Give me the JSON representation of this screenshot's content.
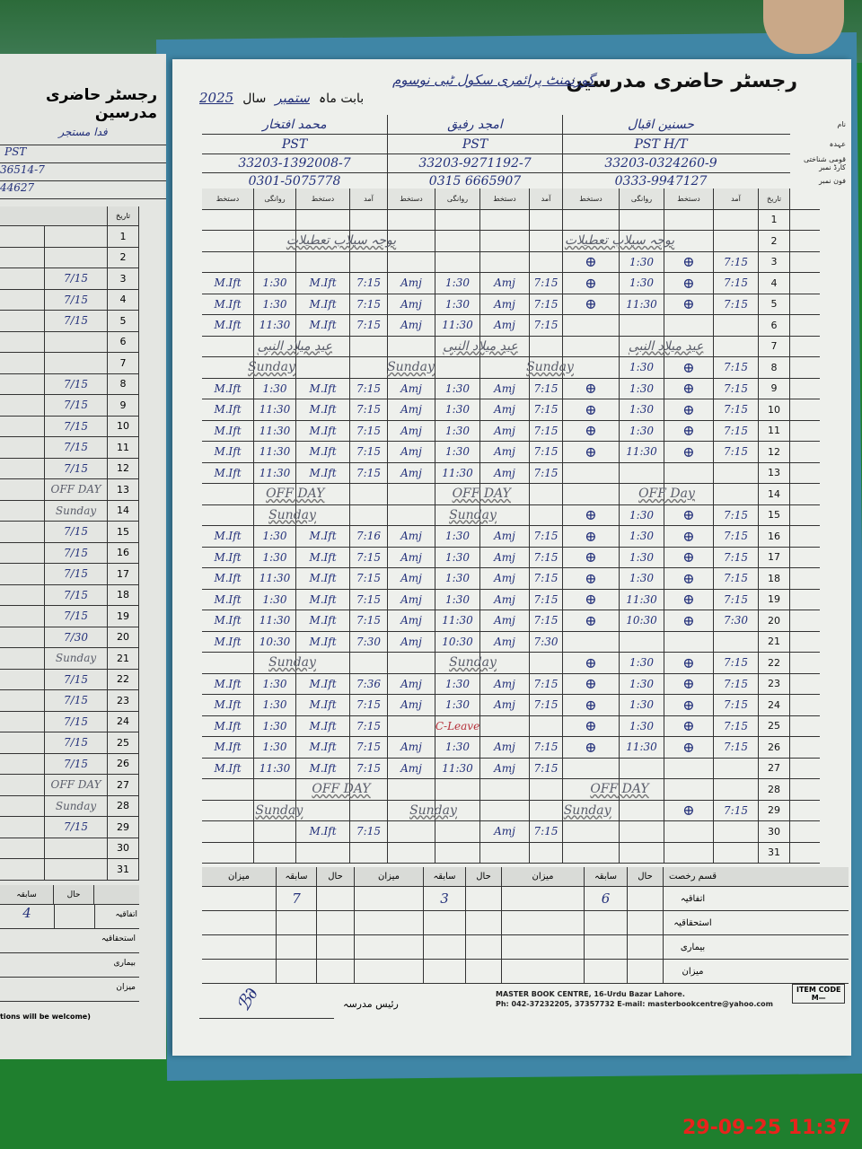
{
  "register": {
    "title": "رجسٹر حاضری مدرسین",
    "school": "گورنمنٹ پرائمری سکول ٹبی نوسوم",
    "month_label": "بابت ماہ",
    "month": "ستمبر",
    "year_label": "سال",
    "year": "2025"
  },
  "info_labels": {
    "name": "نام",
    "designation": "عہدہ",
    "cnic": "قومی شناختی کارڈ نمبر",
    "phone": "فون نمبر"
  },
  "teachers": [
    {
      "name": "محمد افتخار",
      "designation": "PST",
      "cnic": "33203-1392008-7",
      "phone": "0301-5075778"
    },
    {
      "name": "امجد رفیق",
      "designation": "PST",
      "cnic": "33203-9271192-7",
      "phone": "0315 6665907"
    },
    {
      "name": "حسنین اقبال",
      "designation": "PST   H/T",
      "cnic": "33203-0324260-9",
      "phone": "0333-9947127"
    }
  ],
  "columns": [
    "دستخط",
    "روانگی",
    "دستخط",
    "آمد"
  ],
  "date_header": "تاریخ",
  "rows": [
    {
      "date": "1",
      "cells": [
        "",
        "",
        "",
        "",
        "",
        "",
        "",
        "",
        "",
        "",
        "",
        ""
      ]
    },
    {
      "date": "2",
      "cells": [
        "",
        "",
        "",
        "",
        "",
        "",
        "",
        "",
        "",
        "",
        "",
        ""
      ],
      "note": [
        "بوجہ سیلاب تعطیلات",
        "بوجہ سیلاب تعطیلات"
      ]
    },
    {
      "date": "3",
      "cells": [
        "",
        "",
        "",
        "",
        "",
        "",
        "",
        "",
        "⊕",
        "1:30",
        "⊕",
        "7:15"
      ]
    },
    {
      "date": "4",
      "cells": [
        "M.Ift",
        "1:30",
        "M.Ift",
        "7:15",
        "Amj",
        "1:30",
        "Amj",
        "7:15",
        "⊕",
        "1:30",
        "⊕",
        "7:15"
      ]
    },
    {
      "date": "5",
      "cells": [
        "M.Ift",
        "1:30",
        "M.Ift",
        "7:15",
        "Amj",
        "1:30",
        "Amj",
        "7:15",
        "⊕",
        "11:30",
        "⊕",
        "7:15"
      ]
    },
    {
      "date": "6",
      "cells": [
        "M.Ift",
        "11:30",
        "M.Ift",
        "7:15",
        "Amj",
        "11:30",
        "Amj",
        "7:15",
        "",
        "",
        "",
        ""
      ]
    },
    {
      "date": "7",
      "cells": [
        "",
        "",
        "",
        "",
        "",
        "",
        "",
        "",
        "",
        "",
        "",
        ""
      ],
      "note": [
        "عید میلاد النبی",
        "عید میلاد النبی",
        "عید میلاد النبی"
      ]
    },
    {
      "date": "8",
      "cells": [
        "",
        "",
        "",
        "",
        "",
        "",
        "",
        "",
        "",
        "1:30",
        "⊕",
        "7:15"
      ],
      "note": [
        "Sunday",
        "Sunday",
        "Sunday"
      ]
    },
    {
      "date": "9",
      "cells": [
        "M.Ift",
        "1:30",
        "M.Ift",
        "7:15",
        "Amj",
        "1:30",
        "Amj",
        "7:15",
        "⊕",
        "1:30",
        "⊕",
        "7:15"
      ]
    },
    {
      "date": "10",
      "cells": [
        "M.Ift",
        "11:30",
        "M.Ift",
        "7:15",
        "Amj",
        "1:30",
        "Amj",
        "7:15",
        "⊕",
        "1:30",
        "⊕",
        "7:15"
      ]
    },
    {
      "date": "11",
      "cells": [
        "M.Ift",
        "11:30",
        "M.Ift",
        "7:15",
        "Amj",
        "1:30",
        "Amj",
        "7:15",
        "⊕",
        "1:30",
        "⊕",
        "7:15"
      ]
    },
    {
      "date": "12",
      "cells": [
        "M.Ift",
        "11:30",
        "M.Ift",
        "7:15",
        "Amj",
        "1:30",
        "Amj",
        "7:15",
        "⊕",
        "11:30",
        "⊕",
        "7:15"
      ]
    },
    {
      "date": "13",
      "cells": [
        "M.Ift",
        "11:30",
        "M.Ift",
        "7:15",
        "Amj",
        "11:30",
        "Amj",
        "7:15",
        "",
        "",
        "",
        ""
      ]
    },
    {
      "date": "14",
      "cells": [
        "",
        "",
        "",
        "",
        "",
        "",
        "",
        "",
        "",
        "",
        "",
        ""
      ],
      "note": [
        "OFF DAY",
        "OFF DAY",
        "OFF Day"
      ]
    },
    {
      "date": "15",
      "cells": [
        "",
        "",
        "",
        "",
        "",
        "",
        "",
        "",
        "⊕",
        "1:30",
        "⊕",
        "7:15"
      ],
      "note": [
        "Sunday",
        "Sunday"
      ]
    },
    {
      "date": "16",
      "cells": [
        "M.Ift",
        "1:30",
        "M.Ift",
        "7:16",
        "Amj",
        "1:30",
        "Amj",
        "7:15",
        "⊕",
        "1:30",
        "⊕",
        "7:15"
      ]
    },
    {
      "date": "17",
      "cells": [
        "M.Ift",
        "1:30",
        "M.Ift",
        "7:15",
        "Amj",
        "1:30",
        "Amj",
        "7:15",
        "⊕",
        "1:30",
        "⊕",
        "7:15"
      ]
    },
    {
      "date": "18",
      "cells": [
        "M.Ift",
        "11:30",
        "M.Ift",
        "7:15",
        "Amj",
        "1:30",
        "Amj",
        "7:15",
        "⊕",
        "1:30",
        "⊕",
        "7:15"
      ]
    },
    {
      "date": "19",
      "cells": [
        "M.Ift",
        "1:30",
        "M.Ift",
        "7:15",
        "Amj",
        "1:30",
        "Amj",
        "7:15",
        "⊕",
        "11:30",
        "⊕",
        "7:15"
      ]
    },
    {
      "date": "20",
      "cells": [
        "M.Ift",
        "11:30",
        "M.Ift",
        "7:15",
        "Amj",
        "11:30",
        "Amj",
        "7:15",
        "⊕",
        "10:30",
        "⊕",
        "7:30"
      ]
    },
    {
      "date": "21",
      "cells": [
        "M.Ift",
        "10:30",
        "M.Ift",
        "7:30",
        "Amj",
        "10:30",
        "Amj",
        "7:30",
        "",
        "",
        "",
        ""
      ]
    },
    {
      "date": "22",
      "cells": [
        "",
        "",
        "",
        "",
        "",
        "",
        "",
        "",
        "⊕",
        "1:30",
        "⊕",
        "7:15"
      ],
      "note": [
        "Sunday",
        "Sunday"
      ]
    },
    {
      "date": "23",
      "cells": [
        "M.Ift",
        "1:30",
        "M.Ift",
        "7:36",
        "Amj",
        "1:30",
        "Amj",
        "7:15",
        "⊕",
        "1:30",
        "⊕",
        "7:15"
      ]
    },
    {
      "date": "24",
      "cells": [
        "M.Ift",
        "1:30",
        "M.Ift",
        "7:15",
        "Amj",
        "1:30",
        "Amj",
        "7:15",
        "⊕",
        "1:30",
        "⊕",
        "7:15"
      ]
    },
    {
      "date": "25",
      "cells": [
        "M.Ift",
        "1:30",
        "M.Ift",
        "7:15",
        "",
        "C-Leave",
        "",
        "",
        "⊕",
        "1:30",
        "⊕",
        "7:15"
      ]
    },
    {
      "date": "26",
      "cells": [
        "M.Ift",
        "1:30",
        "M.Ift",
        "7:15",
        "Amj",
        "1:30",
        "Amj",
        "7:15",
        "⊕",
        "11:30",
        "⊕",
        "7:15"
      ]
    },
    {
      "date": "27",
      "cells": [
        "M.Ift",
        "11:30",
        "M.Ift",
        "7:15",
        "Amj",
        "11:30",
        "Amj",
        "7:15",
        "",
        "",
        "",
        ""
      ]
    },
    {
      "date": "28",
      "cells": [
        "",
        "",
        "",
        "",
        "",
        "",
        "",
        "",
        "",
        "",
        "",
        ""
      ],
      "note": [
        "OFF DAY",
        "OFF DAY"
      ]
    },
    {
      "date": "29",
      "cells": [
        "",
        "",
        "",
        "",
        "",
        "",
        "",
        "",
        "",
        "",
        "⊕",
        "7:15"
      ],
      "note": [
        "Sunday",
        "Sunday",
        "Sunday"
      ]
    },
    {
      "date": "30",
      "cells": [
        "",
        "",
        "M.Ift",
        "7:15",
        "",
        "",
        "Amj",
        "7:15",
        "",
        "",
        "",
        ""
      ]
    },
    {
      "date": "31",
      "cells": [
        "",
        "",
        "",
        "",
        "",
        "",
        "",
        "",
        "",
        "",
        "",
        ""
      ]
    }
  ],
  "summary": {
    "headers": [
      "میزان",
      "سابقہ",
      "حال"
    ],
    "leave_type": "قسم رخصت",
    "leave_rows": [
      "اتفاقیہ",
      "استحقاقیہ",
      "بیماری",
      "میزان"
    ],
    "previous_values": [
      "7",
      "3",
      "6"
    ]
  },
  "footer": {
    "headmaster_label": "رئیس مدرسہ",
    "publisher": "MASTER BOOK CENTRE, 16-Urdu Bazar Lahore.",
    "contact": "Ph: 042-37232205, 37357732 E-mail: masterbookcentre@yahoo.com",
    "item_code_label": "ITEM CODE",
    "item_code": "M—"
  },
  "left_page": {
    "title": "رجسٹر حاضری مدرسین",
    "name": "فدا مستجر",
    "designation": "PST",
    "cnic": "36514-7",
    "phone": "44627",
    "date_header": "تاریخ",
    "rows": [
      "",
      "",
      "7/15",
      "7/15",
      "7/15",
      "",
      "",
      "7/15",
      "7/15",
      "7/15",
      "7/15",
      "7/15",
      "OFF DAY",
      "Sunday",
      "7/15",
      "7/15",
      "7/15",
      "7/15",
      "7/15",
      "7/30",
      "Sunday",
      "7/15",
      "7/15",
      "7/15",
      "7/15",
      "7/15",
      "OFF DAY",
      "Sunday",
      "7/15",
      "",
      ""
    ],
    "summary_headers": [
      "سابقہ",
      "حال"
    ],
    "summary_value": "4",
    "leave_rows": [
      "اتفاقیہ",
      "استحقاقیہ",
      "بیماری",
      "میزان"
    ],
    "footer_fragment": "tions will be welcome)"
  },
  "timestamp": "29-09-25  11:37",
  "colors": {
    "ink_blue": "#23307a",
    "pencil": "#5a5d6a",
    "background_green": "#1f7f2e",
    "timestamp_red": "#e8231c"
  }
}
